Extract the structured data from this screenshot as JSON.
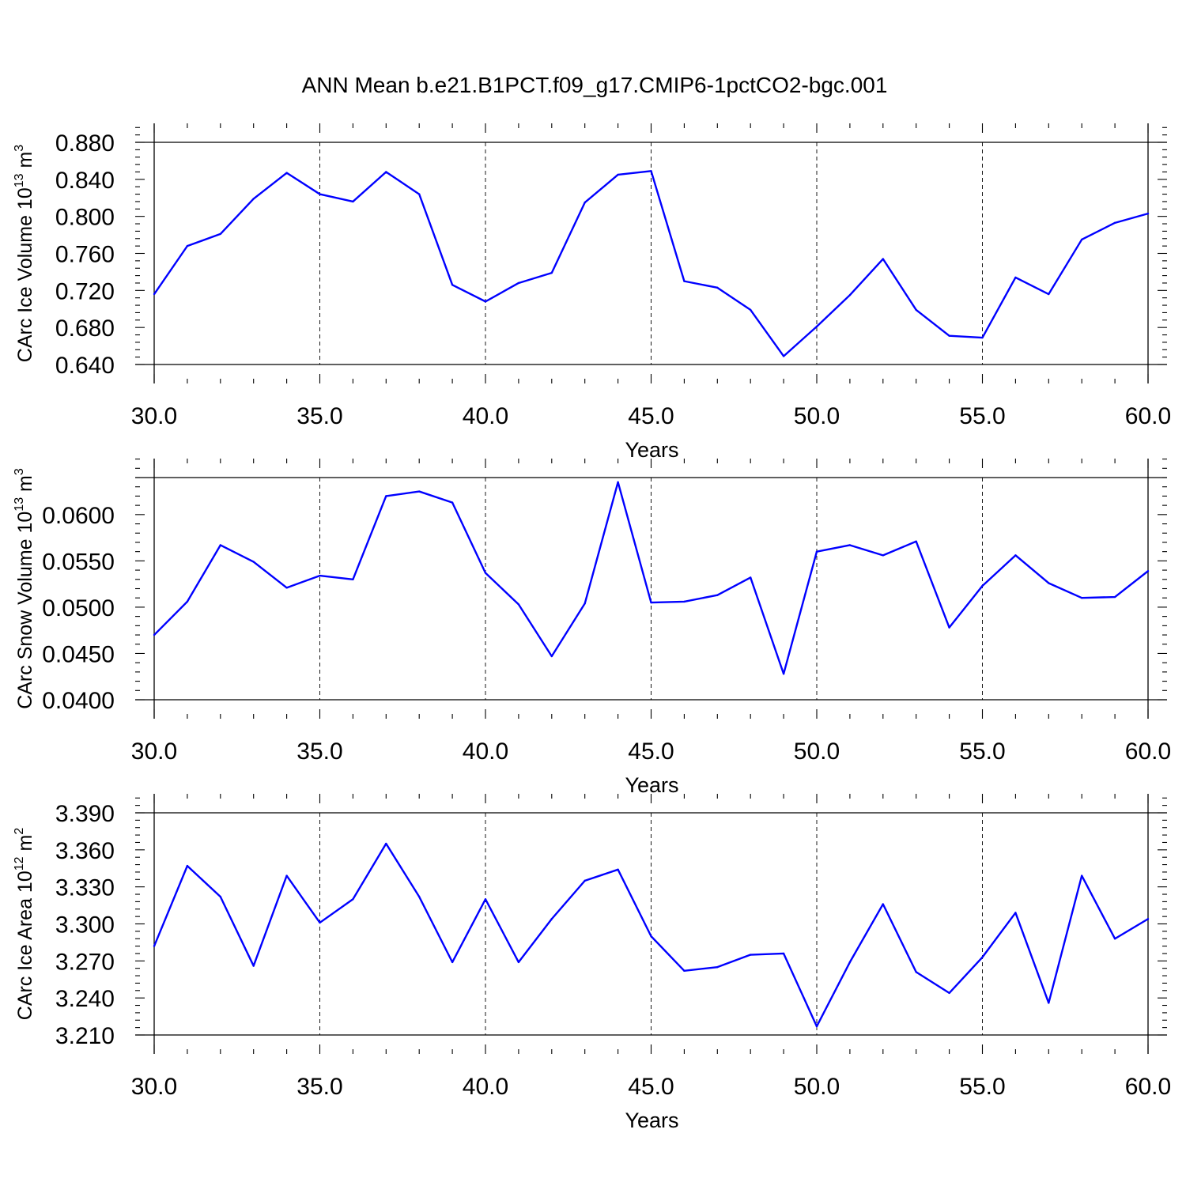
{
  "title": "ANN Mean b.e21.B1PCT.f09_g17.CMIP6-1pctCO2-bgc.001",
  "line_color": "#0000ff",
  "chart_data": [
    {
      "type": "line",
      "xlabel": "Years",
      "ylabel": {
        "text": "CArc Ice Volume 10",
        "exponent": "13",
        "unit": " m",
        "unit_exponent": "3"
      },
      "xlim": [
        30,
        60
      ],
      "ylim": [
        0.64,
        0.88
      ],
      "grid": "dashed vertical at major x ticks",
      "x_ticks": [
        30,
        35,
        40,
        45,
        50,
        55,
        60
      ],
      "x_tick_labels": [
        "30.0",
        "35.0",
        "40.0",
        "45.0",
        "50.0",
        "55.0",
        "60.0"
      ],
      "y_ticks": [
        0.64,
        0.68,
        0.72,
        0.76,
        0.8,
        0.84,
        0.88
      ],
      "y_tick_labels": [
        "0.640",
        "0.680",
        "0.720",
        "0.760",
        "0.800",
        "0.840",
        "0.880"
      ],
      "x": [
        30,
        31,
        32,
        33,
        34,
        35,
        36,
        37,
        38,
        39,
        40,
        41,
        42,
        43,
        44,
        45,
        46,
        47,
        48,
        49,
        50,
        51,
        52,
        53,
        54,
        55,
        56,
        57,
        58,
        59,
        60
      ],
      "y": [
        0.716,
        0.768,
        0.781,
        0.819,
        0.847,
        0.824,
        0.816,
        0.848,
        0.824,
        0.726,
        0.708,
        0.728,
        0.739,
        0.815,
        0.845,
        0.849,
        0.73,
        0.723,
        0.699,
        0.649,
        0.681,
        0.715,
        0.754,
        0.699,
        0.671,
        0.669,
        0.734,
        0.716,
        0.775,
        0.793,
        0.803
      ]
    },
    {
      "type": "line",
      "xlabel": "Years",
      "ylabel": {
        "text": "CArc Snow Volume 10",
        "exponent": "13",
        "unit": " m",
        "unit_exponent": "3"
      },
      "xlim": [
        30,
        60
      ],
      "ylim": [
        0.04,
        0.064
      ],
      "grid": "dashed vertical at major x ticks",
      "x_ticks": [
        30,
        35,
        40,
        45,
        50,
        55,
        60
      ],
      "x_tick_labels": [
        "30.0",
        "35.0",
        "40.0",
        "45.0",
        "50.0",
        "55.0",
        "60.0"
      ],
      "y_ticks": [
        0.04,
        0.045,
        0.05,
        0.055,
        0.06
      ],
      "y_tick_labels": [
        "0.0400",
        "0.0450",
        "0.0500",
        "0.0550",
        "0.0600"
      ],
      "x": [
        30,
        31,
        32,
        33,
        34,
        35,
        36,
        37,
        38,
        39,
        40,
        41,
        42,
        43,
        44,
        45,
        46,
        47,
        48,
        49,
        50,
        51,
        52,
        53,
        54,
        55,
        56,
        57,
        58,
        59,
        60
      ],
      "y": [
        0.047,
        0.0506,
        0.0567,
        0.0549,
        0.0521,
        0.0534,
        0.053,
        0.062,
        0.0625,
        0.0613,
        0.0537,
        0.0503,
        0.0447,
        0.0504,
        0.0635,
        0.0505,
        0.0506,
        0.0513,
        0.0532,
        0.0428,
        0.056,
        0.0567,
        0.0556,
        0.0571,
        0.0478,
        0.0523,
        0.0556,
        0.0526,
        0.051,
        0.0511,
        0.0539
      ]
    },
    {
      "type": "line",
      "xlabel": "Years",
      "ylabel": {
        "text": "CArc Ice Area 10",
        "exponent": "12",
        "unit": " m",
        "unit_exponent": "2"
      },
      "xlim": [
        30,
        60
      ],
      "ylim": [
        3.21,
        3.39
      ],
      "grid": "dashed vertical at major x ticks",
      "x_ticks": [
        30,
        35,
        40,
        45,
        50,
        55,
        60
      ],
      "x_tick_labels": [
        "30.0",
        "35.0",
        "40.0",
        "45.0",
        "50.0",
        "55.0",
        "60.0"
      ],
      "y_ticks": [
        3.21,
        3.24,
        3.27,
        3.3,
        3.33,
        3.36,
        3.39
      ],
      "y_tick_labels": [
        "3.210",
        "3.240",
        "3.270",
        "3.300",
        "3.330",
        "3.360",
        "3.390"
      ],
      "x": [
        30,
        31,
        32,
        33,
        34,
        35,
        36,
        37,
        38,
        39,
        40,
        41,
        42,
        43,
        44,
        45,
        46,
        47,
        48,
        49,
        50,
        51,
        52,
        53,
        54,
        55,
        56,
        57,
        58,
        59,
        60
      ],
      "y": [
        3.282,
        3.347,
        3.322,
        3.266,
        3.339,
        3.301,
        3.32,
        3.365,
        3.322,
        3.269,
        3.32,
        3.269,
        3.304,
        3.335,
        3.344,
        3.29,
        3.262,
        3.265,
        3.275,
        3.276,
        3.217,
        3.269,
        3.316,
        3.261,
        3.244,
        3.273,
        3.309,
        3.236,
        3.339,
        3.288,
        3.304
      ]
    }
  ]
}
